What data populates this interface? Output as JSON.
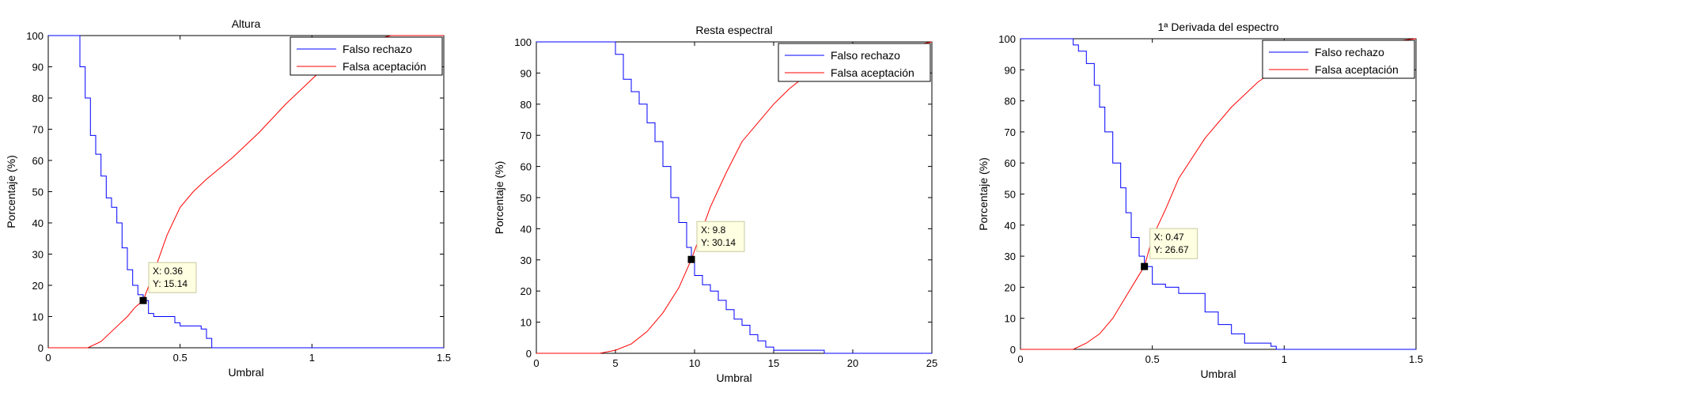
{
  "chart_data": [
    {
      "type": "line",
      "title": "Altura",
      "xlabel": "Umbral",
      "ylabel": "Porcentaje (%)",
      "xlim": [
        0,
        1.5
      ],
      "ylim": [
        0,
        100
      ],
      "xticks": [
        0,
        0.5,
        1,
        1.5
      ],
      "xtick_labels": [
        "0",
        "0.5",
        "1",
        "1.5"
      ],
      "yticks": [
        0,
        10,
        20,
        30,
        40,
        50,
        60,
        70,
        80,
        90,
        100
      ],
      "ytick_labels": [
        "0",
        "10",
        "20",
        "30",
        "40",
        "50",
        "60",
        "70",
        "80",
        "90",
        "100"
      ],
      "legend_position": "top-right",
      "series": [
        {
          "name": "Falso rechazo",
          "color": "#0000ff",
          "x": [
            0,
            0.1,
            0.12,
            0.14,
            0.16,
            0.18,
            0.2,
            0.22,
            0.24,
            0.26,
            0.28,
            0.3,
            0.32,
            0.34,
            0.36,
            0.38,
            0.4,
            0.45,
            0.48,
            0.5,
            0.55,
            0.58,
            0.6,
            0.62,
            0.7,
            1.0,
            1.5
          ],
          "y": [
            100,
            100,
            90,
            80,
            68,
            62,
            55,
            48,
            45,
            40,
            32,
            25,
            20,
            17,
            15.14,
            11,
            10,
            10,
            8,
            7,
            7,
            6,
            3,
            0,
            0,
            0,
            0
          ],
          "step": true
        },
        {
          "name": "Falsa aceptación",
          "color": "#ff0000",
          "x": [
            0,
            0.15,
            0.2,
            0.25,
            0.3,
            0.33,
            0.36,
            0.4,
            0.45,
            0.5,
            0.55,
            0.6,
            0.7,
            0.8,
            0.9,
            1.0,
            1.1,
            1.2,
            1.3,
            1.4,
            1.5
          ],
          "y": [
            0,
            0,
            2,
            6,
            10,
            13,
            15.14,
            24,
            36,
            45,
            50,
            54,
            61,
            69,
            78,
            86,
            94,
            98,
            100,
            100,
            100
          ],
          "step": false
        }
      ],
      "datatip": {
        "x": 0.36,
        "y": 15.14,
        "text_x": "X: 0.36",
        "text_y": "Y: 15.14"
      }
    },
    {
      "type": "line",
      "title": "Resta espectral",
      "xlabel": "Umbral",
      "ylabel": "Porcentaje (%)",
      "xlim": [
        0,
        25
      ],
      "ylim": [
        0,
        100
      ],
      "xticks": [
        0,
        5,
        10,
        15,
        20,
        25
      ],
      "xtick_labels": [
        "0",
        "5",
        "10",
        "15",
        "20",
        "25"
      ],
      "yticks": [
        0,
        10,
        20,
        30,
        40,
        50,
        60,
        70,
        80,
        90,
        100
      ],
      "ytick_labels": [
        "0",
        "10",
        "20",
        "30",
        "40",
        "50",
        "60",
        "70",
        "80",
        "90",
        "100"
      ],
      "legend_position": "top-right",
      "series": [
        {
          "name": "Falso rechazo",
          "color": "#0000ff",
          "x": [
            0,
            4,
            4.5,
            5,
            5.5,
            6,
            6.5,
            7,
            7.5,
            8,
            8.5,
            9,
            9.5,
            9.8,
            10,
            10.5,
            11,
            11.5,
            12,
            12.5,
            13,
            13.5,
            14,
            14.5,
            15,
            18,
            18.2,
            25
          ],
          "y": [
            100,
            100,
            100,
            96,
            88,
            84,
            80,
            74,
            68,
            60,
            50,
            42,
            34,
            30.14,
            25,
            22,
            20,
            17,
            14,
            11,
            9,
            6,
            4,
            2,
            1,
            1,
            0,
            0
          ],
          "step": true
        },
        {
          "name": "Falsa aceptación",
          "color": "#ff0000",
          "x": [
            0,
            4,
            5,
            6,
            7,
            8,
            9,
            9.8,
            10.5,
            11,
            12,
            13,
            14,
            15,
            16,
            17,
            18,
            19,
            20,
            22,
            24,
            25
          ],
          "y": [
            0,
            0,
            1,
            3,
            7,
            13,
            21,
            30.14,
            40,
            47,
            58,
            68,
            74,
            80,
            85,
            89,
            92,
            94,
            96,
            98,
            99,
            100
          ],
          "step": false
        }
      ],
      "datatip": {
        "x": 9.8,
        "y": 30.14,
        "text_x": "X: 9.8",
        "text_y": "Y: 30.14"
      }
    },
    {
      "type": "line",
      "title": "1ª Derivada del espectro",
      "xlabel": "Umbral",
      "ylabel": "Porcentaje (%)",
      "xlim": [
        0,
        1.5
      ],
      "ylim": [
        0,
        100
      ],
      "xticks": [
        0,
        0.5,
        1,
        1.5
      ],
      "xtick_labels": [
        "0",
        "0.5",
        "1",
        "1.5"
      ],
      "yticks": [
        0,
        10,
        20,
        30,
        40,
        50,
        60,
        70,
        80,
        90,
        100
      ],
      "ytick_labels": [
        "0",
        "10",
        "20",
        "30",
        "40",
        "50",
        "60",
        "70",
        "80",
        "90",
        "100"
      ],
      "legend_position": "top-right",
      "series": [
        {
          "name": "Falso rechazo",
          "color": "#0000ff",
          "x": [
            0,
            0.18,
            0.2,
            0.22,
            0.25,
            0.28,
            0.3,
            0.32,
            0.35,
            0.38,
            0.4,
            0.42,
            0.45,
            0.47,
            0.5,
            0.55,
            0.6,
            0.65,
            0.7,
            0.75,
            0.8,
            0.85,
            0.9,
            0.95,
            0.97,
            1.5
          ],
          "y": [
            100,
            100,
            98,
            96,
            92,
            85,
            78,
            70,
            60,
            52,
            44,
            36,
            30,
            26.67,
            21,
            20,
            18,
            18,
            12,
            8,
            5,
            2,
            2,
            1,
            0,
            0
          ],
          "step": true
        },
        {
          "name": "Falsa aceptación",
          "color": "#ff0000",
          "x": [
            0,
            0.2,
            0.25,
            0.3,
            0.35,
            0.4,
            0.45,
            0.47,
            0.5,
            0.55,
            0.6,
            0.7,
            0.8,
            0.9,
            1.0,
            1.1,
            1.2,
            1.3,
            1.4,
            1.5
          ],
          "y": [
            0,
            0,
            2,
            5,
            10,
            17,
            24,
            26.67,
            36,
            45,
            55,
            68,
            78,
            86,
            92,
            95,
            97,
            98,
            99,
            100
          ],
          "step": false
        }
      ],
      "datatip": {
        "x": 0.47,
        "y": 26.67,
        "text_x": "X: 0.47",
        "text_y": "Y: 26.67"
      }
    }
  ]
}
